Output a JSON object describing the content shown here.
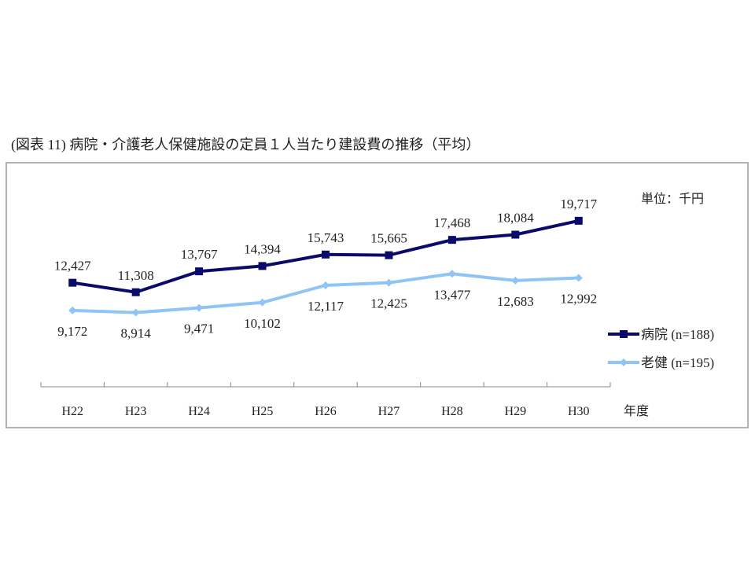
{
  "chart_data": {
    "type": "line",
    "title": "(図表 11) 病院・介護老人保健施設の定員１人当たり建設費の推移（平均）",
    "unit_label": "単位：千円",
    "xlabel": "年度",
    "ylabel": "",
    "categories": [
      "H22",
      "H23",
      "H24",
      "H25",
      "H26",
      "H27",
      "H28",
      "H29",
      "H30"
    ],
    "ylim": [
      0,
      21000
    ],
    "grid": false,
    "legend": "right",
    "series": [
      {
        "name": "病院 (n=188)",
        "color": "#0a0a6b",
        "marker": "square",
        "values": [
          12427,
          11308,
          13767,
          14394,
          15743,
          15665,
          17468,
          18084,
          19717
        ],
        "labels": [
          "12,427",
          "11,308",
          "13,767",
          "14,394",
          "15,743",
          "15,665",
          "17,468",
          "18,084",
          "19,717"
        ]
      },
      {
        "name": "老健 (n=195)",
        "color": "#8fc4f5",
        "marker": "diamond",
        "values": [
          9172,
          8914,
          9471,
          10102,
          12117,
          12425,
          13477,
          12683,
          12992
        ],
        "labels": [
          "9,172",
          "8,914",
          "9,471",
          "10,102",
          "12,117",
          "12,425",
          "13,477",
          "12,683",
          "12,992"
        ]
      }
    ]
  }
}
